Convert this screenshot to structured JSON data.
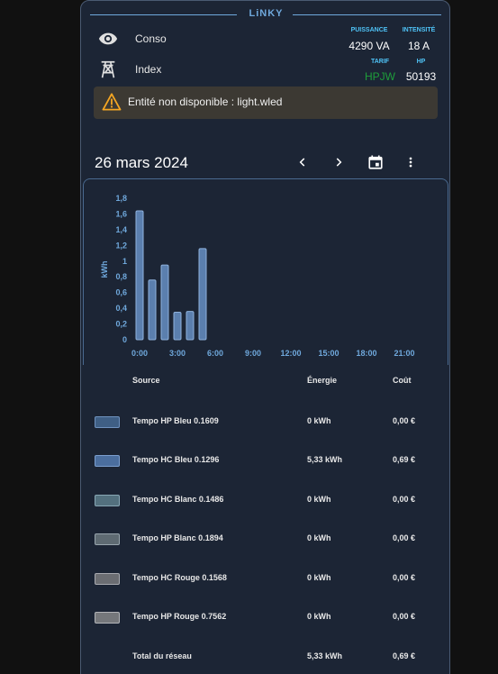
{
  "card": {
    "title": "LiNKY"
  },
  "rows": [
    {
      "label": "Conso",
      "icon": "eye-icon"
    },
    {
      "label": "Index",
      "icon": "transmission-tower-icon"
    }
  ],
  "stats": {
    "puissance_label": "PUISSANCE",
    "puissance_value": "4290 VA",
    "intensite_label": "INTENSITÉ",
    "intensite_value": "18 A",
    "tarif_label": "TARIF",
    "tarif_value": "HPJW",
    "hp_label": "HP",
    "hp_value": "50193",
    "tarif_color": "#1e9e3a",
    "accent": "#4fc3f7"
  },
  "warning": {
    "text": "Entité non disponible : light.wled",
    "icon": "alert-triangle-icon",
    "color": "#f5a623"
  },
  "date_nav": {
    "date": "26 mars 2024",
    "prev_icon": "chevron-left-icon",
    "next_icon": "chevron-right-icon",
    "calendar_icon": "calendar-icon",
    "menu_icon": "dots-vertical-icon"
  },
  "chart_data": {
    "type": "bar",
    "ylabel": "kWh",
    "ylim": [
      0,
      1.8
    ],
    "yticks": [
      "0",
      "0,2",
      "0,4",
      "0,6",
      "0,8",
      "1",
      "1,2",
      "1,4",
      "1,6",
      "1,8"
    ],
    "xticks": [
      "0:00",
      "3:00",
      "6:00",
      "9:00",
      "12:00",
      "15:00",
      "18:00",
      "21:00"
    ],
    "x": [
      0,
      1,
      2,
      3,
      4,
      5
    ],
    "values": [
      1.64,
      0.76,
      0.95,
      0.35,
      0.36,
      1.16
    ],
    "bar_color": "#5b7fae"
  },
  "table": {
    "headers": {
      "source": "Source",
      "energy": "Énergie",
      "cost": "Coût"
    },
    "rows": [
      {
        "source": "Tempo HP Bleu 0.1609",
        "energy": "0 kWh",
        "cost": "0,00 €",
        "swatch": "#3f5f85",
        "border": "#6f92bf"
      },
      {
        "source": "Tempo HC Bleu 0.1296",
        "energy": "5,33 kWh",
        "cost": "0,69 €",
        "swatch": "#4b6e9e",
        "border": "#7c9fcf"
      },
      {
        "source": "Tempo HC Blanc 0.1486",
        "energy": "0 kWh",
        "cost": "0,00 €",
        "swatch": "#53707e",
        "border": "#88a7b5"
      },
      {
        "source": "Tempo HP Blanc 0.1894",
        "energy": "0 kWh",
        "cost": "0,00 €",
        "swatch": "#5e6a72",
        "border": "#98a5ad"
      },
      {
        "source": "Tempo HC Rouge 0.1568",
        "energy": "0 kWh",
        "cost": "0,00 €",
        "swatch": "#6b6d72",
        "border": "#a8aab0"
      },
      {
        "source": "Tempo HP Rouge 0.7562",
        "energy": "0 kWh",
        "cost": "0,00 €",
        "swatch": "#75777b",
        "border": "#b2b4b8"
      }
    ],
    "total": {
      "label": "Total du réseau",
      "energy": "5,33 kWh",
      "cost": "0,69 €"
    }
  }
}
